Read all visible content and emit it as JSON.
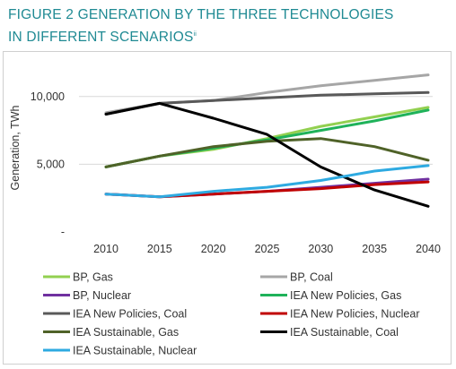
{
  "figure": {
    "title_line1": "FIGURE 2 GENERATION BY THE THREE TECHNOLOGIES",
    "title_line2": "IN DIFFERENT SCENARIOS",
    "footnote_mark": "ii"
  },
  "chart_data": {
    "type": "line",
    "title": "FIGURE 2 GENERATION BY THE THREE TECHNOLOGIES IN DIFFERENT SCENARIOS",
    "xlabel": "",
    "ylabel": "Generation, TWh",
    "x": [
      2010,
      2015,
      2020,
      2025,
      2030,
      2035,
      2040
    ],
    "x_tick_labels": [
      "2010",
      "2015",
      "2020",
      "2025",
      "2030",
      "2035",
      "2040"
    ],
    "ylim": [
      0,
      12500
    ],
    "y_ticks": [
      0,
      5000,
      10000
    ],
    "y_tick_labels": [
      "-",
      "5,000",
      "10,000"
    ],
    "grid": "horizontal",
    "legend_position": "bottom",
    "series": [
      {
        "name": "BP, Gas",
        "color": "#92d050",
        "values": [
          4800,
          5600,
          6100,
          6900,
          7800,
          8500,
          9200
        ]
      },
      {
        "name": "BP, Coal",
        "color": "#a6a6a6",
        "values": [
          8800,
          9500,
          9700,
          10300,
          10800,
          11200,
          11600
        ]
      },
      {
        "name": "BP, Nuclear",
        "color": "#7030a0",
        "values": [
          2800,
          2600,
          2800,
          3000,
          3300,
          3600,
          3900
        ]
      },
      {
        "name": "IEA New Policies, Gas",
        "color": "#1fb25a",
        "values": [
          4800,
          5600,
          6200,
          6800,
          7500,
          8200,
          9000
        ]
      },
      {
        "name": "IEA New Policies, Coal",
        "color": "#595959",
        "values": [
          8700,
          9500,
          9700,
          9900,
          10100,
          10200,
          10300
        ]
      },
      {
        "name": "IEA New Policies, Nuclear",
        "color": "#c00000",
        "values": [
          2800,
          2600,
          2800,
          3000,
          3200,
          3500,
          3700
        ]
      },
      {
        "name": "IEA Sustainable, Gas",
        "color": "#4f6228",
        "values": [
          4800,
          5600,
          6300,
          6700,
          6900,
          6300,
          5300
        ]
      },
      {
        "name": "IEA Sustainable, Coal",
        "color": "#000000",
        "values": [
          8700,
          9500,
          8400,
          7200,
          4800,
          3100,
          1900
        ]
      },
      {
        "name": "IEA Sustainable, Nuclear",
        "color": "#2eaae1",
        "values": [
          2800,
          2600,
          3000,
          3300,
          3800,
          4500,
          4900
        ]
      }
    ]
  }
}
